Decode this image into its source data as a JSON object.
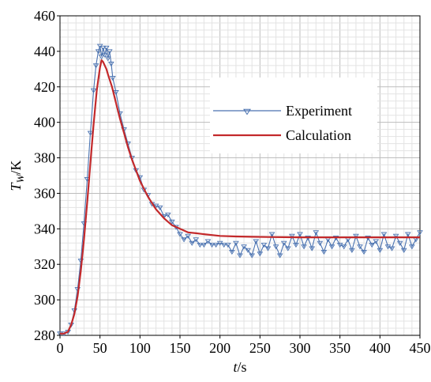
{
  "chart_data": {
    "type": "line",
    "title": "",
    "xlabel_italic": "t",
    "xlabel_rest": "/s",
    "ylabel_italic": "T",
    "ylabel_sub": "W",
    "ylabel_rest": "/K",
    "xlim": [
      0,
      450
    ],
    "ylim": [
      280,
      460
    ],
    "x_ticks": [
      0,
      50,
      100,
      150,
      200,
      250,
      300,
      350,
      400,
      450
    ],
    "y_ticks": [
      280,
      300,
      320,
      340,
      360,
      380,
      400,
      420,
      440,
      460
    ],
    "grid": "major-and-minor",
    "legend_position": "right",
    "series": [
      {
        "name": "Experiment",
        "color": "#4a72b0",
        "marker": "triangle-down",
        "x": [
          0,
          5,
          10,
          14,
          18,
          22,
          26,
          30,
          34,
          38,
          42,
          45,
          48,
          50,
          52,
          54,
          56,
          58,
          60,
          62,
          64,
          66,
          70,
          75,
          80,
          85,
          90,
          95,
          100,
          105,
          110,
          115,
          120,
          125,
          130,
          135,
          140,
          145,
          150,
          155,
          160,
          165,
          170,
          175,
          180,
          185,
          190,
          195,
          200,
          205,
          210,
          215,
          220,
          225,
          230,
          235,
          240,
          245,
          250,
          255,
          260,
          265,
          270,
          275,
          280,
          285,
          290,
          295,
          300,
          305,
          310,
          315,
          320,
          325,
          330,
          335,
          340,
          345,
          350,
          355,
          360,
          365,
          370,
          375,
          380,
          385,
          390,
          395,
          400,
          405,
          410,
          415,
          420,
          425,
          430,
          435,
          440,
          445,
          450
        ],
        "y": [
          281,
          281,
          282,
          286,
          294,
          306,
          322,
          343,
          368,
          394,
          418,
          432,
          440,
          443,
          437,
          442,
          438,
          442,
          436,
          440,
          433,
          425,
          417,
          405,
          396,
          388,
          380,
          373,
          369,
          362,
          359,
          354,
          353,
          352,
          347,
          348,
          344,
          341,
          337,
          334,
          336,
          332,
          334,
          331,
          331,
          333,
          331,
          331,
          332,
          331,
          331,
          327,
          332,
          325,
          330,
          328,
          325,
          333,
          326,
          331,
          329,
          337,
          330,
          325,
          332,
          329,
          336,
          331,
          337,
          330,
          335,
          329,
          338,
          332,
          327,
          334,
          330,
          335,
          331,
          330,
          334,
          328,
          336,
          330,
          327,
          335,
          331,
          333,
          328,
          337,
          330,
          329,
          336,
          332,
          328,
          337,
          330,
          334,
          338
        ]
      },
      {
        "name": "Calculation",
        "color": "#c3292b",
        "marker": "none",
        "x": [
          0,
          5,
          10,
          14,
          18,
          22,
          26,
          30,
          34,
          38,
          42,
          46,
          50,
          52,
          54,
          56,
          58,
          60,
          65,
          70,
          75,
          80,
          85,
          90,
          95,
          100,
          110,
          120,
          130,
          140,
          150,
          160,
          170,
          180,
          190,
          200,
          220,
          240,
          260,
          280,
          300,
          330,
          360,
          390,
          420,
          450
        ],
        "y": [
          281,
          281,
          282,
          286,
          292,
          302,
          316,
          334,
          355,
          377,
          399,
          418,
          431,
          435,
          434,
          432,
          430,
          427,
          420,
          411,
          402,
          394,
          386,
          379,
          373,
          367,
          358,
          351,
          346,
          342,
          340,
          338,
          337.5,
          337,
          336.5,
          336,
          335.7,
          335.5,
          335.4,
          335.3,
          335.2,
          335.2,
          335.2,
          335.2,
          335.2,
          335.2
        ]
      }
    ]
  }
}
